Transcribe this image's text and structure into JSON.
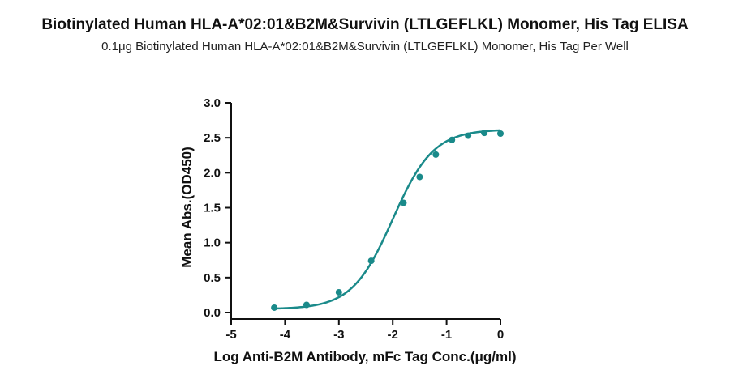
{
  "chart_data": {
    "type": "line",
    "title": "Biotinylated Human HLA-A*02:01&B2M&Survivin (LTLGEFLKL) Monomer, His Tag ELISA",
    "subtitle": "0.1μg Biotinylated Human HLA-A*02:01&B2M&Survivin (LTLGEFLKL) Monomer, His Tag Per Well",
    "xlabel": "Log Anti-B2M Antibody, mFc Tag Conc.(μg/ml)",
    "ylabel": "Mean Abs.(OD450)",
    "xlim": [
      -5,
      0
    ],
    "ylim": [
      0,
      3.0
    ],
    "xticks": [
      -5,
      -4,
      -3,
      -2,
      -1,
      0
    ],
    "xtick_labels": [
      "-5",
      "-4",
      "-3",
      "-2",
      "-1",
      "0"
    ],
    "yticks": [
      0,
      0.5,
      1.0,
      1.5,
      2.0,
      2.5,
      3.0
    ],
    "ytick_labels": [
      "0.0",
      "0.5",
      "1.0",
      "1.5",
      "2.0",
      "2.5",
      "3.0"
    ],
    "grid": false,
    "color": "#1a8a8a",
    "series": [
      {
        "x": [
          -4.2,
          -3.6,
          -3.0,
          -2.4,
          -1.8,
          -1.5,
          -1.2,
          -0.9,
          -0.6,
          -0.3,
          0.0
        ],
        "y": [
          0.07,
          0.11,
          0.29,
          0.74,
          1.57,
          1.94,
          2.26,
          2.47,
          2.53,
          2.57,
          2.56
        ]
      }
    ],
    "fit": {
      "model": "4PL",
      "bottom": 0.05,
      "top": 2.62,
      "logEC50": -2.0,
      "hill": 1.15
    }
  }
}
